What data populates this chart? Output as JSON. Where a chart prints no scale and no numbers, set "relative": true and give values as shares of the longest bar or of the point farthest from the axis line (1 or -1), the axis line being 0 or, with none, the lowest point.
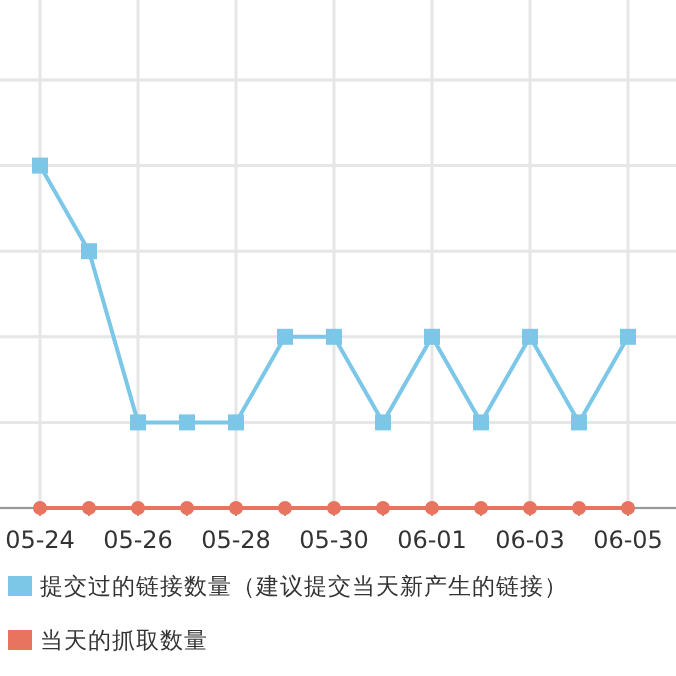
{
  "chart_data": {
    "type": "line",
    "relative": true,
    "categories": [
      "05-24",
      null,
      "05-26",
      null,
      "05-28",
      null,
      "05-30",
      null,
      "06-01",
      null,
      "06-03",
      null,
      "06-05"
    ],
    "series": [
      {
        "name": "提交过的链接数量（建议提交当天新产生的链接）",
        "color": "#7cc7e8",
        "marker": "square",
        "values": [
          1,
          0.75,
          0.25,
          0.25,
          0.25,
          0.5,
          0.5,
          0.25,
          0.5,
          0.25,
          0.5,
          0.25,
          0.5
        ]
      },
      {
        "name": "当天的抓取数量",
        "color": "#e8735f",
        "marker": "circle",
        "values": [
          0,
          0,
          0,
          0,
          0,
          0,
          0,
          0,
          0,
          0,
          0,
          0,
          0
        ]
      }
    ],
    "grid": true,
    "legend": "bottom"
  }
}
